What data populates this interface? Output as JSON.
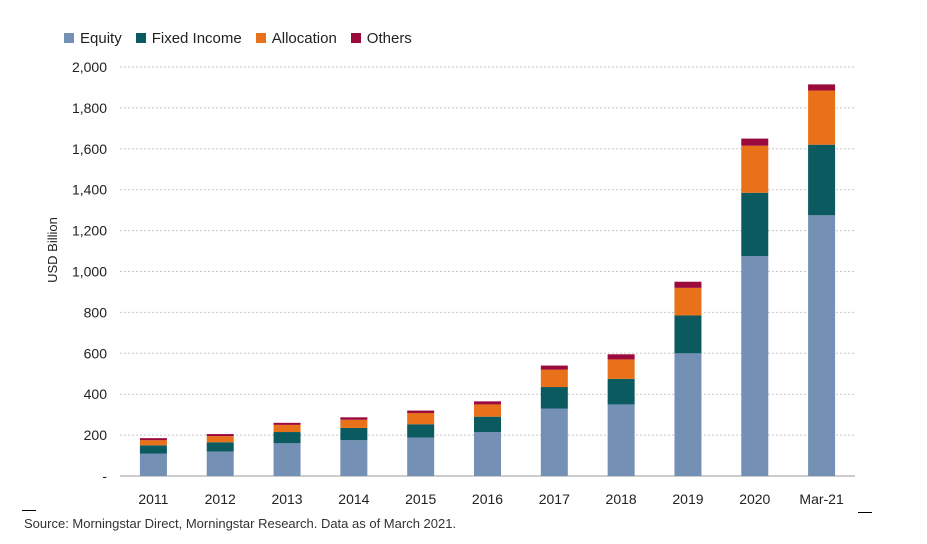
{
  "chart_data": {
    "type": "bar",
    "stacked": true,
    "categories": [
      "2011",
      "2012",
      "2013",
      "2014",
      "2015",
      "2016",
      "2017",
      "2018",
      "2019",
      "2020",
      "Mar-21"
    ],
    "series": [
      {
        "name": "Equity",
        "color": "#7490b4",
        "values": [
          110,
          120,
          160,
          175,
          188,
          215,
          330,
          350,
          600,
          1075,
          1275
        ]
      },
      {
        "name": "Fixed Income",
        "color": "#0a5a5f",
        "values": [
          40,
          45,
          55,
          60,
          65,
          75,
          105,
          125,
          185,
          310,
          345
        ]
      },
      {
        "name": "Allocation",
        "color": "#e8711a",
        "values": [
          25,
          30,
          35,
          40,
          55,
          60,
          85,
          95,
          135,
          230,
          265
        ]
      },
      {
        "name": "Others",
        "color": "#9b0a3c",
        "values": [
          10,
          10,
          10,
          12,
          12,
          15,
          20,
          25,
          30,
          35,
          30
        ]
      }
    ],
    "ylabel": "USD Billion",
    "xlabel": "",
    "ylim": [
      0,
      2000
    ],
    "yticks": [
      0,
      200,
      400,
      600,
      800,
      1000,
      1200,
      1400,
      1600,
      1800,
      2000
    ],
    "ytick_labels": [
      "-",
      "200",
      "400",
      "600",
      "800",
      "1,000",
      "1,200",
      "1,400",
      "1,600",
      "1,800",
      "2,000"
    ],
    "grid": "horizontal dashed",
    "legend_position": "top-left"
  },
  "source": "Source: Morningstar Direct, Morningstar Research. Data as of March 2021."
}
